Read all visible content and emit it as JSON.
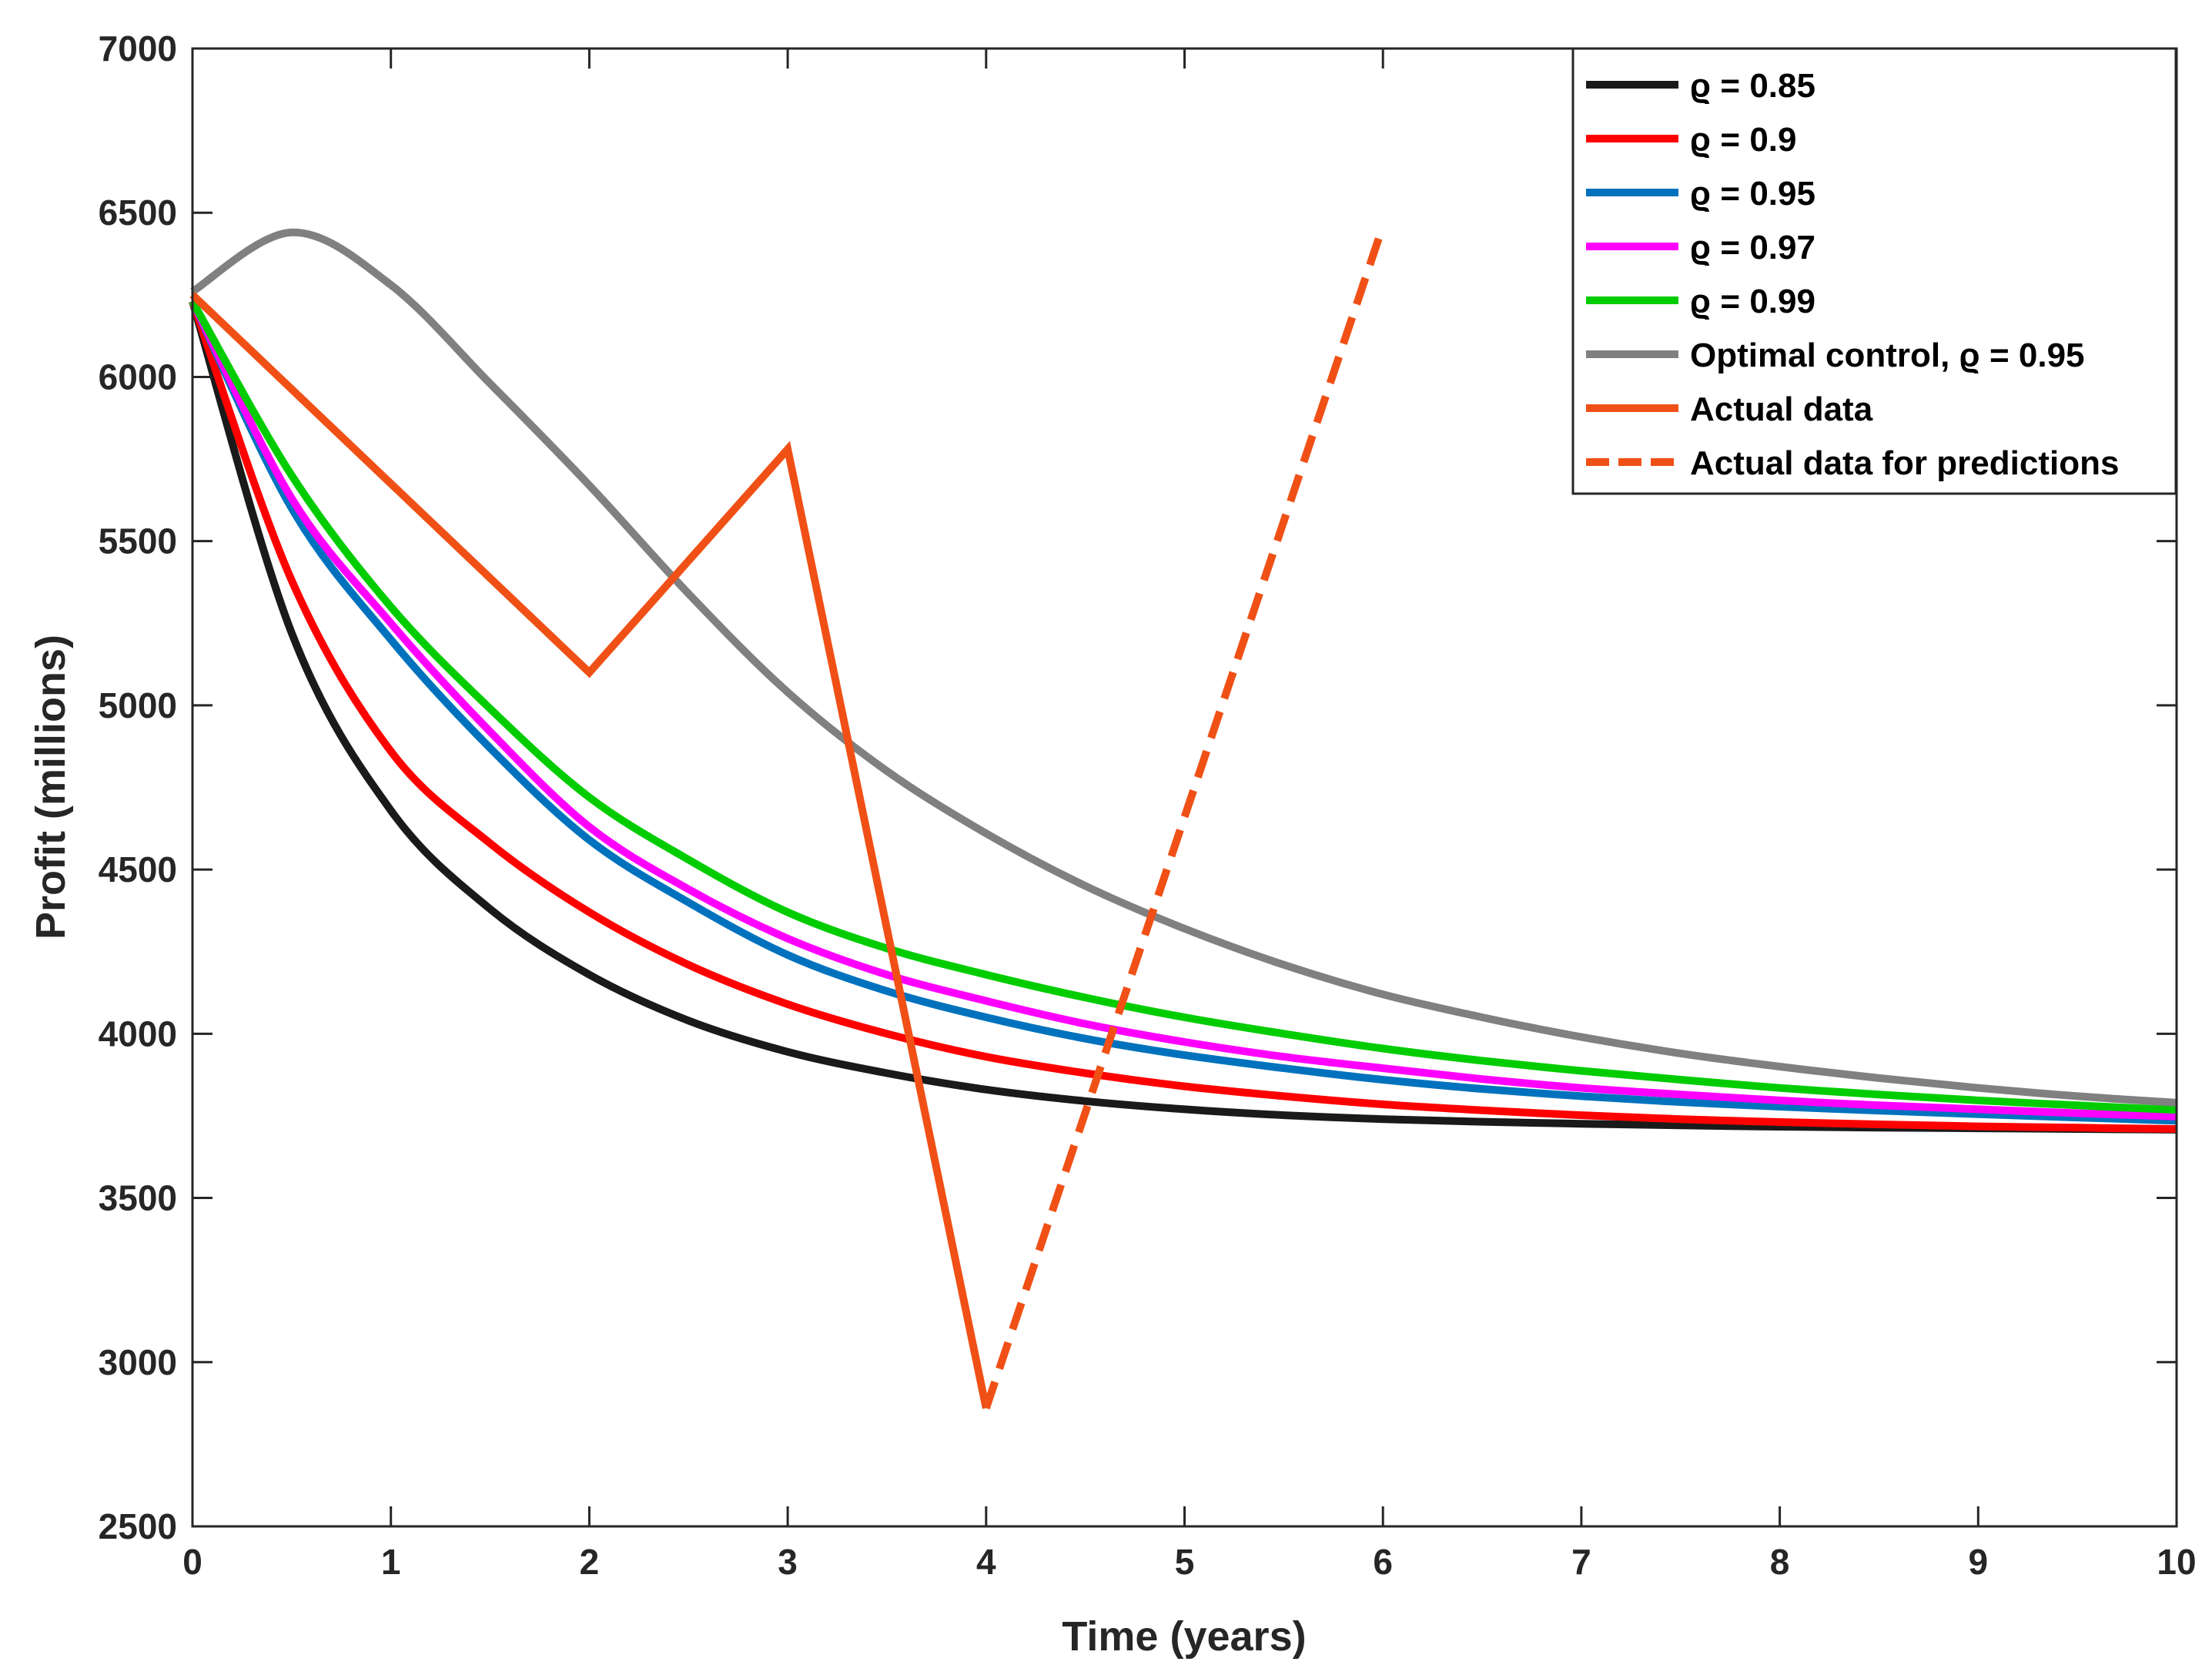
{
  "chart_data": {
    "type": "line",
    "title": "",
    "xlabel": "Time (years)",
    "ylabel": "Profit (millions)",
    "xlim": [
      0,
      10
    ],
    "ylim": [
      2500,
      7000
    ],
    "xticks": [
      0,
      1,
      2,
      3,
      4,
      5,
      6,
      7,
      8,
      9,
      10
    ],
    "yticks": [
      2500,
      3000,
      3500,
      4000,
      4500,
      5000,
      5500,
      6000,
      6500,
      7000
    ],
    "grid": false,
    "legend_position": "top-right",
    "x": [
      0,
      0.5,
      1,
      1.5,
      2,
      2.5,
      3,
      3.5,
      4,
      4.5,
      5,
      5.5,
      6,
      6.5,
      7,
      7.5,
      8,
      8.5,
      9,
      9.5,
      10
    ],
    "series": [
      {
        "name": "ϱ = 0.85",
        "color": "#1a1a1a",
        "style": "solid",
        "values": [
          6230,
          5220,
          4680,
          4380,
          4180,
          4040,
          3945,
          3880,
          3830,
          3795,
          3770,
          3752,
          3740,
          3732,
          3726,
          3721,
          3717,
          3714,
          3712,
          3710,
          3708
        ]
      },
      {
        "name": "ϱ = 0.9",
        "color": "#ff0000",
        "style": "solid",
        "values": [
          6230,
          5380,
          4860,
          4580,
          4370,
          4210,
          4090,
          4000,
          3930,
          3880,
          3840,
          3810,
          3785,
          3767,
          3752,
          3740,
          3731,
          3724,
          3718,
          3714,
          3710
        ]
      },
      {
        "name": "ϱ = 0.95",
        "color": "#0072bd",
        "style": "solid",
        "values": [
          6230,
          5600,
          5200,
          4870,
          4590,
          4400,
          4240,
          4130,
          4050,
          3985,
          3935,
          3895,
          3860,
          3832,
          3810,
          3792,
          3778,
          3766,
          3755,
          3745,
          3735
        ]
      },
      {
        "name": "ϱ = 0.97",
        "color": "#ff00ff",
        "style": "solid",
        "values": [
          6230,
          5630,
          5250,
          4920,
          4630,
          4440,
          4290,
          4180,
          4100,
          4030,
          3975,
          3930,
          3895,
          3862,
          3835,
          3815,
          3797,
          3782,
          3770,
          3758,
          3748
        ]
      },
      {
        "name": "ϱ = 0.99",
        "color": "#00cc00",
        "style": "solid",
        "values": [
          6230,
          5700,
          5300,
          4990,
          4720,
          4530,
          4370,
          4260,
          4180,
          4110,
          4050,
          4000,
          3955,
          3918,
          3887,
          3860,
          3835,
          3815,
          3797,
          3782,
          3768
        ]
      },
      {
        "name": "Optimal control, ϱ = 0.95",
        "color": "#808080",
        "style": "solid",
        "values": [
          6260,
          6440,
          6280,
          5980,
          5670,
          5340,
          5040,
          4800,
          4610,
          4450,
          4320,
          4210,
          4120,
          4050,
          3990,
          3940,
          3900,
          3865,
          3835,
          3810,
          3790
        ]
      }
    ],
    "extra_series": [
      {
        "name": "Actual data",
        "color": "#f05016",
        "style": "solid",
        "x": [
          0,
          2,
          3,
          4
        ],
        "values": [
          6250,
          5100,
          5780,
          2860
        ]
      },
      {
        "name": "Actual data for predictions",
        "color": "#f05016",
        "style": "dashed",
        "x": [
          4,
          6
        ],
        "values": [
          2860,
          6460
        ]
      }
    ]
  }
}
